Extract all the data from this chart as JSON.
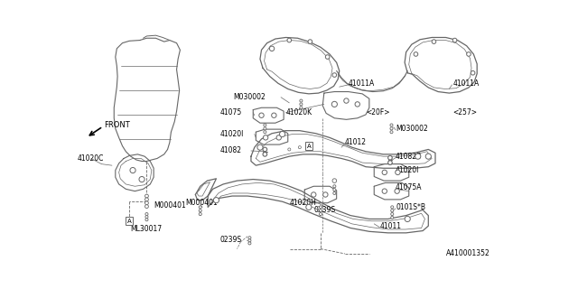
{
  "bg_color": "#ffffff",
  "lc": "#666666",
  "tc": "#000000",
  "fig_width": 6.4,
  "fig_height": 3.2,
  "dpi": 100,
  "diagram_id": "A410001352",
  "labels": {
    "front": "FRONT",
    "41020C": "41020C",
    "ML30017": "ML30017",
    "M000401": "M000401",
    "M030002_L": "M030002",
    "M030002_R": "M030002",
    "41075": "41075",
    "41020K": "41020K",
    "41020I_T": "41020I",
    "41082": "41082",
    "41012": "41012",
    "41082B": "41082B",
    "41020I_B": "41020I",
    "41075A": "41075A",
    "41020H": "41020H",
    "0239S_T": "0239S",
    "0101S_B": "0101S*B",
    "0239S_B": "0239S",
    "41011A_L": "41011A",
    "41011A_R": "41011A",
    "20F": "<20F>",
    "257": "<257>",
    "41011": "41011",
    "A": "A"
  }
}
